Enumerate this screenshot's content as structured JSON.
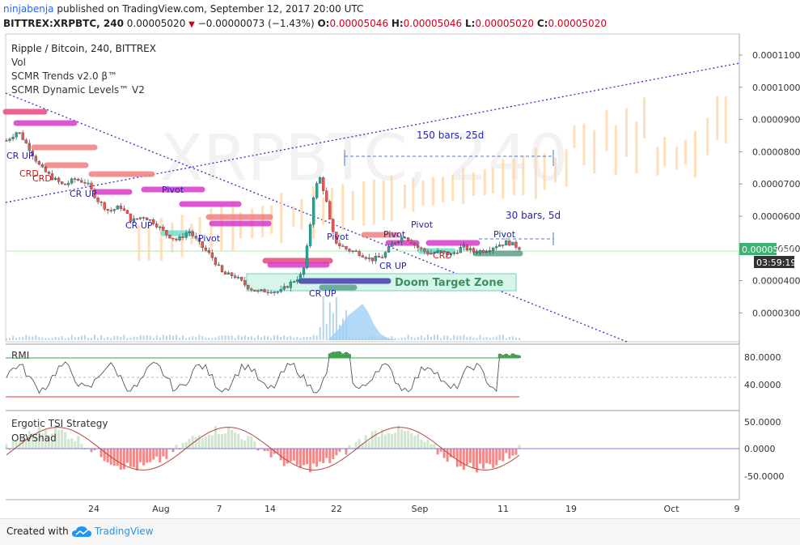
{
  "header": {
    "user": "ninjabenja",
    "published": "published on TradingView.com, September 12, 2017 20:00 UTC",
    "symbol": "BITTREX:XRPBTC, 240",
    "price": "0.00005020",
    "change": "−0.00000073 (−1.43%)",
    "o_label": "O:",
    "o": "0.00005046",
    "h_label": "H:",
    "h": "0.00005046",
    "l_label": "L:",
    "l": "0.00005020",
    "c_label": "C:",
    "c": "0.00005020"
  },
  "legend": {
    "title": "Ripple / Bitcoin, 240, BITTREX",
    "vol": "Vol",
    "trends": "SCMR Trends v2.0 β™",
    "levels": "SCMR Dynamic Levels™ V2"
  },
  "watermark": "XRPBTC, 240",
  "annotations": {
    "bars150": "150 bars, 25d",
    "bars30": "30 bars, 5d",
    "doom": "Doom Target Zone",
    "countdown": "03:59:19",
    "price_tag": "0.00005020"
  },
  "labels": {
    "crup": "CR UP",
    "pivot": "Pivot",
    "crd": "CRD"
  },
  "panes": {
    "rmi": "RMI",
    "tsi": "Ergotic TSI Strategy",
    "obv": "OBVShad"
  },
  "footer": {
    "created": "Created with",
    "brand": "TradingView"
  },
  "colors": {
    "up": "#26a69a",
    "down": "#ef5350",
    "pink": "#ff4c8b",
    "magenta": "#d63ac8",
    "salmon": "#f08080",
    "navy": "#3f3fb0",
    "blue_line": "#2b2bcf",
    "projection": "#ffd7a8"
  },
  "chart_data": {
    "type": "candlestick",
    "price_axis": {
      "ticks": [
        "0.00011000",
        "0.00010000",
        "0.00009000",
        "0.00008000",
        "0.00007000",
        "0.00006000",
        "0.00005000",
        "0.00004000",
        "0.00003000"
      ],
      "tick_values": [
        0.00011,
        0.0001,
        9e-05,
        8e-05,
        7e-05,
        6e-05,
        5e-05,
        4e-05,
        3e-05
      ]
    },
    "time_axis": {
      "ticks": [
        "24",
        "Aug",
        "7",
        "14",
        "22",
        "Sep",
        "11",
        "19",
        "Oct",
        "9"
      ]
    },
    "price_series": [
      [
        0,
        8.35e-05
      ],
      [
        2,
        8.65e-05
      ],
      [
        4,
        8.1e-05
      ],
      [
        6,
        7.5e-05
      ],
      [
        8,
        7.2e-05
      ],
      [
        10,
        6.95e-05
      ],
      [
        12,
        7.15e-05
      ],
      [
        14,
        7.05e-05
      ],
      [
        16,
        6.5e-05
      ],
      [
        18,
        6.15e-05
      ],
      [
        20,
        6.3e-05
      ],
      [
        22,
        5.85e-05
      ],
      [
        24,
        6e-05
      ],
      [
        26,
        5.8e-05
      ],
      [
        28,
        5.45e-05
      ],
      [
        30,
        5.25e-05
      ],
      [
        32,
        5.55e-05
      ],
      [
        34,
        5.1e-05
      ],
      [
        36,
        4.75e-05
      ],
      [
        38,
        4.2e-05
      ],
      [
        40,
        4.15e-05
      ],
      [
        42,
        3.85e-05
      ],
      [
        44,
        3.65e-05
      ],
      [
        46,
        3.7e-05
      ],
      [
        48,
        3.65e-05
      ],
      [
        50,
        3.95e-05
      ],
      [
        52,
        4.2e-05
      ],
      [
        53,
        5.3e-05
      ],
      [
        54,
        6.8e-05
      ],
      [
        55,
        7.2e-05
      ],
      [
        56,
        6.6e-05
      ],
      [
        57,
        5.6e-05
      ],
      [
        58,
        5.15e-05
      ],
      [
        60,
        4.95e-05
      ],
      [
        62,
        4.85e-05
      ],
      [
        64,
        4.65e-05
      ],
      [
        66,
        4.75e-05
      ],
      [
        68,
        5.2e-05
      ],
      [
        70,
        5.4e-05
      ],
      [
        72,
        5.05e-05
      ],
      [
        74,
        4.85e-05
      ],
      [
        76,
        4.9e-05
      ],
      [
        78,
        4.8e-05
      ],
      [
        80,
        5.05e-05
      ],
      [
        82,
        4.9e-05
      ],
      [
        84,
        4.95e-05
      ],
      [
        86,
        5.1e-05
      ],
      [
        88,
        5.2e-05
      ],
      [
        90,
        5.02e-05
      ]
    ],
    "last_price": 5.02e-05,
    "rmi_axis": {
      "ticks": [
        "80.0000",
        "40.0000"
      ],
      "tick_values": [
        80,
        40
      ]
    },
    "tsi_axis": {
      "ticks": [
        "50.0000",
        "0.0000",
        "-50.0000"
      ],
      "tick_values": [
        50,
        0,
        -50
      ]
    }
  }
}
